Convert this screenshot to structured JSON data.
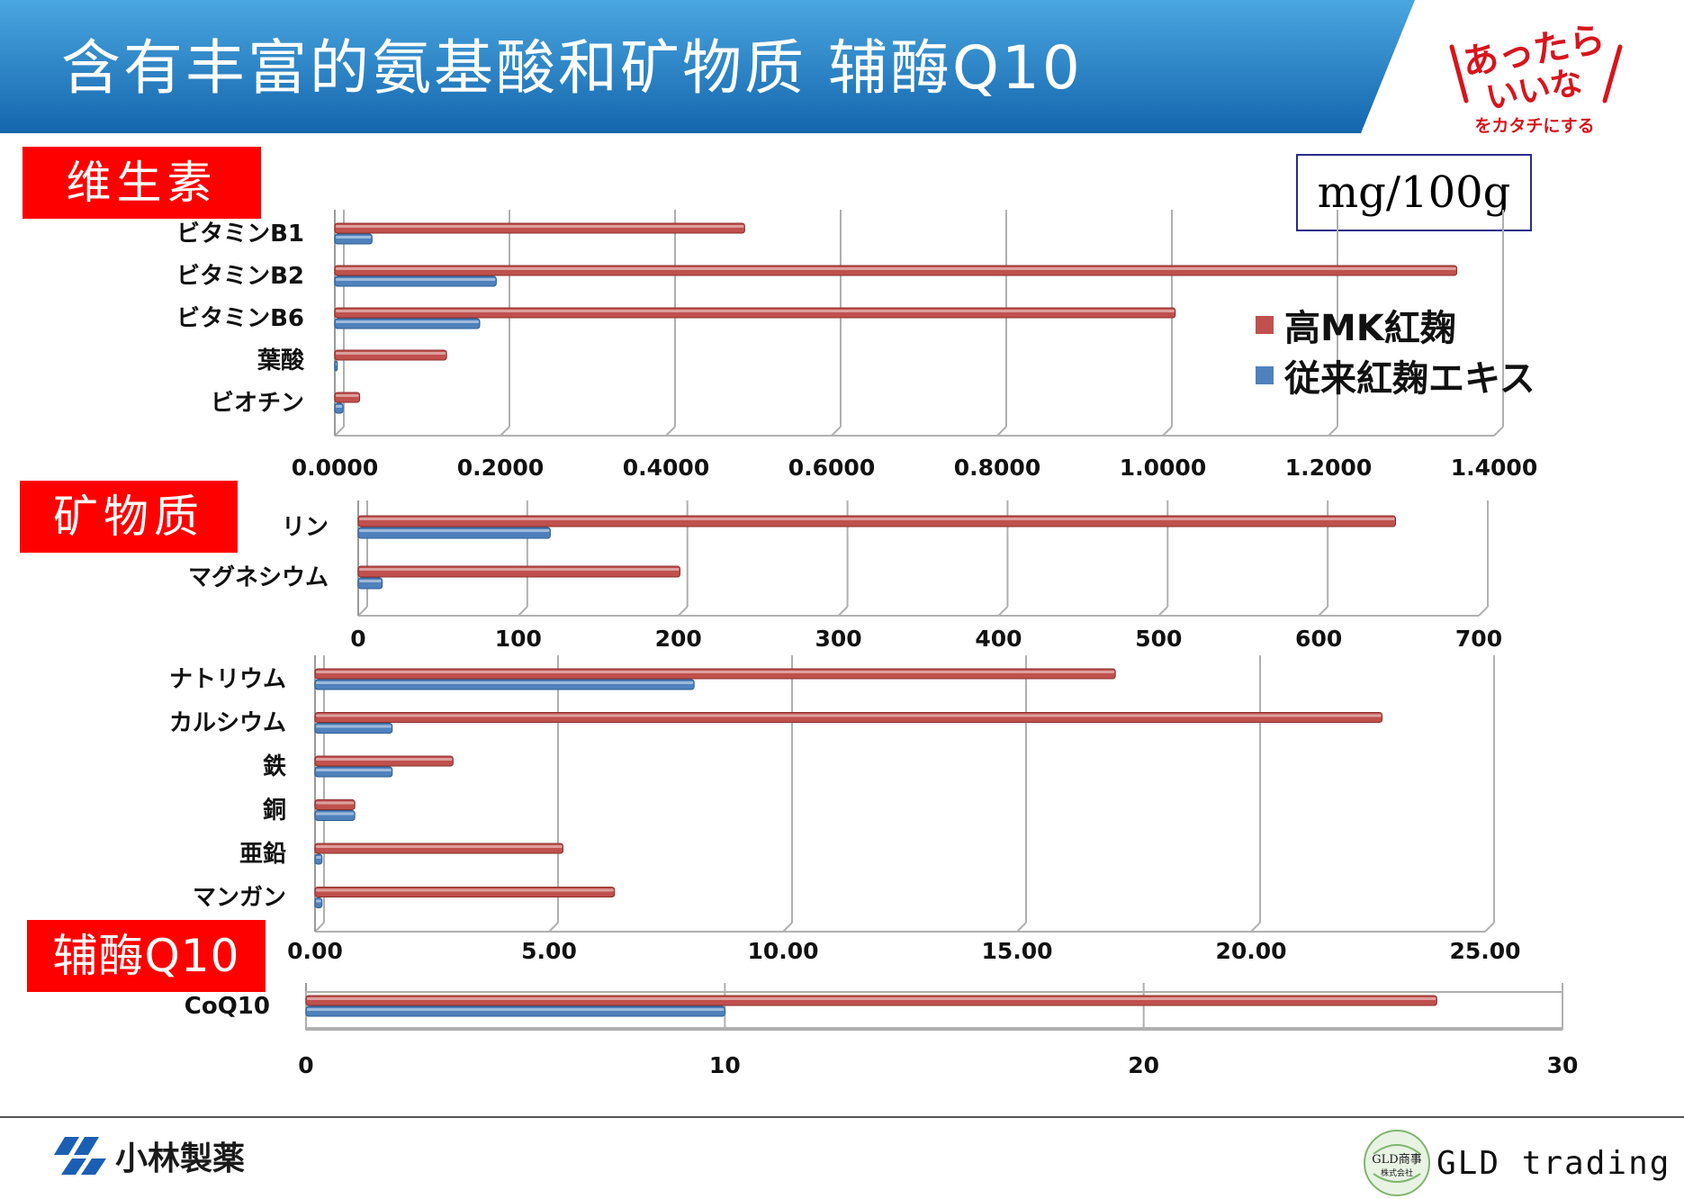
{
  "header": {
    "title": "含有丰富的氨基酸和矿物质 辅酶Q10",
    "logo_line1": "あったら",
    "logo_line2": "いいな",
    "logo_tagline": "をカタチにする"
  },
  "sections": {
    "vitamins": "维生素",
    "minerals": "矿物质",
    "coq10": "辅酶Q10"
  },
  "unit": "mg/100g",
  "legend": [
    {
      "label": "高MK紅麹",
      "color": "#c0504d"
    },
    {
      "label": "従来紅麹エキス",
      "color": "#4f81bd"
    }
  ],
  "colors": {
    "series_a": "#c0504d",
    "series_b": "#4f81bd",
    "header_blue": "#1f7fc4"
  },
  "footer": {
    "company": "小林製薬",
    "partner": "GLD trading",
    "partner_badge_line1": "GLD商事",
    "partner_badge_line2": "株式会社"
  },
  "chart_data": [
    {
      "type": "bar",
      "orientation": "horizontal",
      "categories": [
        "ビタミンB1",
        "ビタミンB2",
        "ビタミンB6",
        "葉酸",
        "ビオチン"
      ],
      "series": [
        {
          "name": "高MK紅麹",
          "values": [
            0.495,
            1.355,
            1.015,
            0.135,
            0.03
          ]
        },
        {
          "name": "従来紅麹エキス",
          "values": [
            0.045,
            0.195,
            0.175,
            0.003,
            0.01
          ]
        }
      ],
      "xlim": [
        0,
        1.4
      ],
      "ticks": [
        "0.0000",
        "0.2000",
        "0.4000",
        "0.6000",
        "0.8000",
        "1.0000",
        "1.2000",
        "1.4000"
      ],
      "grid": true
    },
    {
      "type": "bar",
      "orientation": "horizontal",
      "categories": [
        "リン",
        "マグネシウム"
      ],
      "series": [
        {
          "name": "高MK紅麹",
          "values": [
            648,
            201
          ]
        },
        {
          "name": "従来紅麹エキス",
          "values": [
            120,
            15
          ]
        }
      ],
      "xlim": [
        0,
        700
      ],
      "ticks": [
        "0",
        "100",
        "200",
        "300",
        "400",
        "500",
        "600",
        "700"
      ],
      "grid": true
    },
    {
      "type": "bar",
      "orientation": "horizontal",
      "categories": [
        "ナトリウム",
        "カルシウム",
        "鉄",
        "銅",
        "亜鉛",
        "マンガン"
      ],
      "series": [
        {
          "name": "高MK紅麹",
          "values": [
            17.1,
            22.8,
            2.95,
            0.85,
            5.3,
            6.4
          ]
        },
        {
          "name": "従来紅麹エキス",
          "values": [
            8.1,
            1.65,
            1.65,
            0.85,
            0.15,
            0.15
          ]
        }
      ],
      "xlim": [
        0,
        25
      ],
      "ticks": [
        "0.00",
        "5.00",
        "10.00",
        "15.00",
        "20.00",
        "25.00"
      ],
      "grid": true
    },
    {
      "type": "bar",
      "orientation": "horizontal",
      "categories": [
        "CoQ10"
      ],
      "series": [
        {
          "name": "高MK紅麹",
          "values": [
            27
          ]
        },
        {
          "name": "従来紅麹エキス",
          "values": [
            10
          ]
        }
      ],
      "xlim": [
        0,
        30
      ],
      "ticks": [
        "0",
        "10",
        "20",
        "30"
      ],
      "grid": true
    }
  ]
}
